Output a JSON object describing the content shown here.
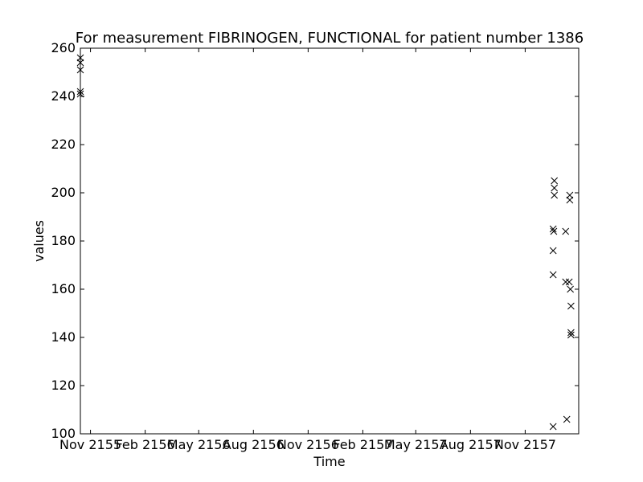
{
  "chart_data": {
    "type": "scatter",
    "title": "For measurement FIBRINOGEN, FUNCTIONAL for patient number 1386",
    "xlabel": "Time",
    "ylabel": "values",
    "ylim": [
      100,
      260
    ],
    "xlim": [
      "2155-10-15",
      "2158-01-30"
    ],
    "grid": false,
    "marker": "x",
    "marker_color": "#000000",
    "xticks": [
      {
        "date": "2155-11-01",
        "label": "Nov 2155"
      },
      {
        "date": "2156-02-01",
        "label": "Feb 2156"
      },
      {
        "date": "2156-05-01",
        "label": "May 2156"
      },
      {
        "date": "2156-08-01",
        "label": "Aug 2156"
      },
      {
        "date": "2156-11-01",
        "label": "Nov 2156"
      },
      {
        "date": "2157-02-01",
        "label": "Feb 2157"
      },
      {
        "date": "2157-05-01",
        "label": "May 2157"
      },
      {
        "date": "2157-08-01",
        "label": "Aug 2157"
      },
      {
        "date": "2157-11-01",
        "label": "Nov 2157"
      }
    ],
    "yticks": [
      100,
      120,
      140,
      160,
      180,
      200,
      220,
      240,
      260
    ],
    "points": [
      {
        "x": "2155-10-15",
        "y": 256
      },
      {
        "x": "2155-10-15",
        "y": 254
      },
      {
        "x": "2155-10-15",
        "y": 251
      },
      {
        "x": "2155-10-15",
        "y": 242
      },
      {
        "x": "2155-10-15",
        "y": 241
      },
      {
        "x": "2157-12-18",
        "y": 185
      },
      {
        "x": "2157-12-18",
        "y": 176
      },
      {
        "x": "2157-12-18",
        "y": 166
      },
      {
        "x": "2157-12-18",
        "y": 103
      },
      {
        "x": "2157-12-19",
        "y": 184
      },
      {
        "x": "2157-12-20",
        "y": 205
      },
      {
        "x": "2157-12-20",
        "y": 202
      },
      {
        "x": "2157-12-20",
        "y": 199
      },
      {
        "x": "2158-01-08",
        "y": 184
      },
      {
        "x": "2158-01-08",
        "y": 163
      },
      {
        "x": "2158-01-10",
        "y": 106
      },
      {
        "x": "2158-01-14",
        "y": 163
      },
      {
        "x": "2158-01-15",
        "y": 199
      },
      {
        "x": "2158-01-15",
        "y": 197
      },
      {
        "x": "2158-01-16",
        "y": 160
      },
      {
        "x": "2158-01-17",
        "y": 153
      },
      {
        "x": "2158-01-17",
        "y": 142
      },
      {
        "x": "2158-01-17",
        "y": 141
      }
    ]
  }
}
